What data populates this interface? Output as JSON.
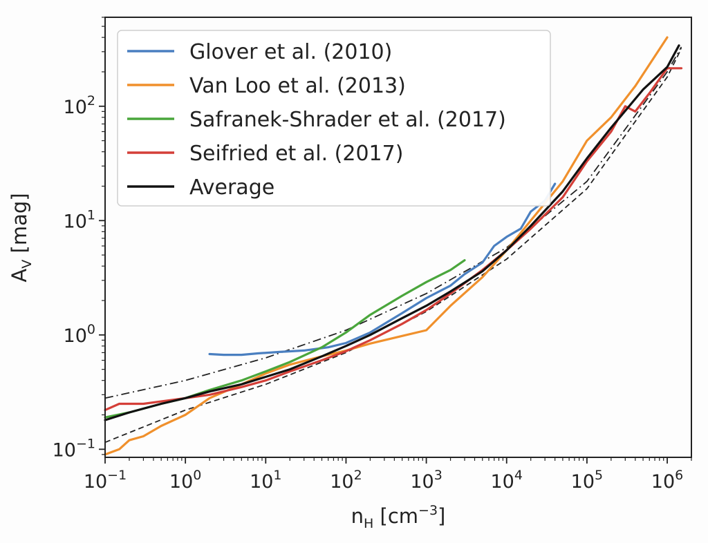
{
  "chart_data": {
    "type": "line",
    "xlabel": {
      "main": "n",
      "sub": "H",
      "unit": " [cm",
      "sup": "−3",
      "close": "]"
    },
    "ylabel": {
      "main": "A",
      "sub": "V",
      "unit": " [mag]"
    },
    "xscale": "log",
    "yscale": "log",
    "xlim": [
      0.1,
      2000000
    ],
    "ylim": [
      0.085,
      600
    ],
    "grid": false,
    "legend_position": "top-left",
    "x_ticks": [
      {
        "value": 0.1,
        "base": "10",
        "exp": "−1"
      },
      {
        "value": 1,
        "base": "10",
        "exp": "0"
      },
      {
        "value": 10,
        "base": "10",
        "exp": "1"
      },
      {
        "value": 100,
        "base": "10",
        "exp": "2"
      },
      {
        "value": 1000,
        "base": "10",
        "exp": "3"
      },
      {
        "value": 10000,
        "base": "10",
        "exp": "4"
      },
      {
        "value": 100000,
        "base": "10",
        "exp": "5"
      },
      {
        "value": 1000000,
        "base": "10",
        "exp": "6"
      }
    ],
    "y_ticks": [
      {
        "value": 0.1,
        "base": "10",
        "exp": "−1"
      },
      {
        "value": 1,
        "base": "10",
        "exp": "0"
      },
      {
        "value": 10,
        "base": "10",
        "exp": "1"
      },
      {
        "value": 100,
        "base": "10",
        "exp": "2"
      }
    ],
    "series": [
      {
        "name": "Glover et al. (2010)",
        "color": "#4a7fc0",
        "x": [
          2,
          3,
          5,
          8,
          15,
          30,
          60,
          100,
          200,
          500,
          1000,
          2000,
          3000,
          5000,
          7000,
          10000,
          15000,
          20000,
          30000,
          40000
        ],
        "y": [
          0.68,
          0.67,
          0.67,
          0.69,
          0.71,
          0.73,
          0.78,
          0.85,
          1.05,
          1.55,
          2.1,
          2.7,
          3.4,
          4.3,
          6.0,
          7.2,
          8.5,
          12.0,
          15.0,
          21.0
        ]
      },
      {
        "name": "Van Loo et al. (2013)",
        "color": "#f0902c",
        "x": [
          0.1,
          0.15,
          0.2,
          0.3,
          0.5,
          1,
          2,
          5,
          10,
          20,
          50,
          100,
          200,
          500,
          1000,
          2000,
          5000,
          10000,
          20000,
          50000,
          100000,
          200000,
          400000,
          1000000
        ],
        "y": [
          0.09,
          0.1,
          0.12,
          0.13,
          0.16,
          0.2,
          0.28,
          0.37,
          0.46,
          0.55,
          0.65,
          0.73,
          0.84,
          0.98,
          1.1,
          1.8,
          3.2,
          5.5,
          10.0,
          22.0,
          50.0,
          80.0,
          150.0,
          400.0
        ]
      },
      {
        "name": "Safranek-Shrader et al. (2017)",
        "color": "#4aa63c",
        "x": [
          0.1,
          0.2,
          0.5,
          1,
          2,
          5,
          10,
          20,
          50,
          100,
          200,
          500,
          1000,
          2000,
          3000
        ],
        "y": [
          0.19,
          0.21,
          0.25,
          0.28,
          0.33,
          0.4,
          0.48,
          0.58,
          0.78,
          1.05,
          1.5,
          2.2,
          2.9,
          3.7,
          4.5
        ]
      },
      {
        "name": "Seifried et al. (2017)",
        "color": "#d43f38",
        "x": [
          0.1,
          0.15,
          0.3,
          1,
          2,
          5,
          10,
          20,
          50,
          100,
          200,
          500,
          1000,
          2000,
          5000,
          10000,
          20000,
          50000,
          100000,
          200000,
          300000,
          400000,
          600000,
          1000000,
          1500000
        ],
        "y": [
          0.22,
          0.25,
          0.25,
          0.28,
          0.3,
          0.35,
          0.4,
          0.48,
          0.6,
          0.72,
          0.9,
          1.25,
          1.65,
          2.3,
          3.7,
          5.5,
          8.5,
          16.0,
          33.0,
          60.0,
          100.0,
          90.0,
          130.0,
          215.0,
          215.0
        ]
      },
      {
        "name": "Average",
        "color": "#111111",
        "x": [
          0.1,
          0.2,
          0.5,
          1,
          2,
          5,
          10,
          20,
          50,
          100,
          200,
          500,
          1000,
          2000,
          5000,
          10000,
          20000,
          50000,
          100000,
          200000,
          500000,
          1000000,
          1400000
        ],
        "y": [
          0.18,
          0.21,
          0.25,
          0.28,
          0.32,
          0.37,
          0.43,
          0.5,
          0.65,
          0.8,
          1.0,
          1.4,
          1.8,
          2.4,
          3.6,
          5.5,
          9.0,
          18.0,
          35.0,
          65.0,
          140.0,
          220.0,
          340.0
        ]
      }
    ],
    "reference_lines": [
      {
        "style": "dash-dot",
        "color": "#222222",
        "x": [
          0.1,
          1,
          10,
          100,
          1000,
          10000,
          100000,
          1000000,
          1500000
        ],
        "y": [
          0.28,
          0.4,
          0.63,
          1.1,
          2.3,
          5.8,
          22.0,
          200.0,
          330.0
        ]
      },
      {
        "style": "dashed",
        "color": "#222222",
        "x": [
          0.1,
          1,
          10,
          100,
          1000,
          10000,
          100000,
          1000000,
          1500000
        ],
        "y": [
          0.115,
          0.22,
          0.37,
          0.7,
          1.6,
          4.6,
          19.0,
          180.0,
          320.0
        ]
      }
    ]
  }
}
